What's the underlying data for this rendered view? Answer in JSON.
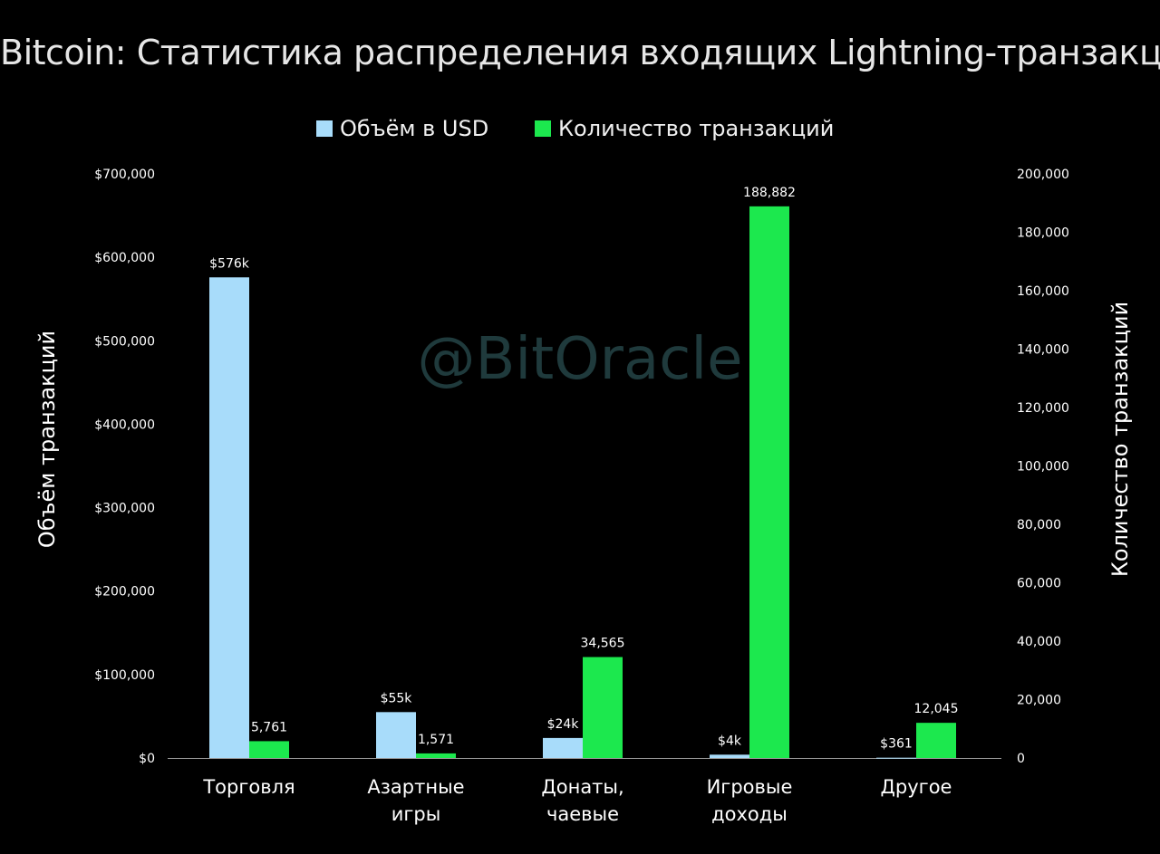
{
  "chart_data": {
    "type": "bar",
    "title": "Bitcoin: Статистика распределения входящих Lightning-транзакций",
    "categories": [
      [
        "Торговля"
      ],
      [
        "Азартные",
        "игры"
      ],
      [
        "Донаты,",
        "чаевые"
      ],
      [
        "Игровые",
        "доходы"
      ],
      [
        "Другое"
      ]
    ],
    "series": [
      {
        "name": "Объём в USD",
        "axis": "left",
        "color": "#a8dcfa",
        "values": [
          576000,
          55000,
          24000,
          4000,
          361
        ],
        "labels": [
          "$576k",
          "$55k",
          "$24k",
          "$4k",
          "$361"
        ]
      },
      {
        "name": "Количество транзакций",
        "axis": "right",
        "color": "#1ce84e",
        "values": [
          5761,
          1571,
          34565,
          188882,
          12045
        ],
        "labels": [
          "5,761",
          "1,571",
          "34,565",
          "188,882",
          "12,045"
        ]
      }
    ],
    "y_left": {
      "label": "Объём транзакций",
      "lim": [
        0,
        700000
      ],
      "ticks": [
        0,
        100000,
        200000,
        300000,
        400000,
        500000,
        600000,
        700000
      ],
      "tick_labels": [
        "$0",
        "$100,000",
        "$200,000",
        "$300,000",
        "$400,000",
        "$500,000",
        "$600,000",
        "$700,000"
      ]
    },
    "y_right": {
      "label": "Количество транзакций",
      "lim": [
        0,
        200000
      ],
      "ticks": [
        0,
        20000,
        40000,
        60000,
        80000,
        100000,
        120000,
        140000,
        160000,
        180000,
        200000
      ],
      "tick_labels": [
        "0",
        "20,000",
        "40,000",
        "60,000",
        "80,000",
        "100,000",
        "120,000",
        "140,000",
        "160,000",
        "180,000",
        "200,000"
      ]
    },
    "grid": false,
    "legend_position": "top-center",
    "watermark": "@BitOracle"
  }
}
